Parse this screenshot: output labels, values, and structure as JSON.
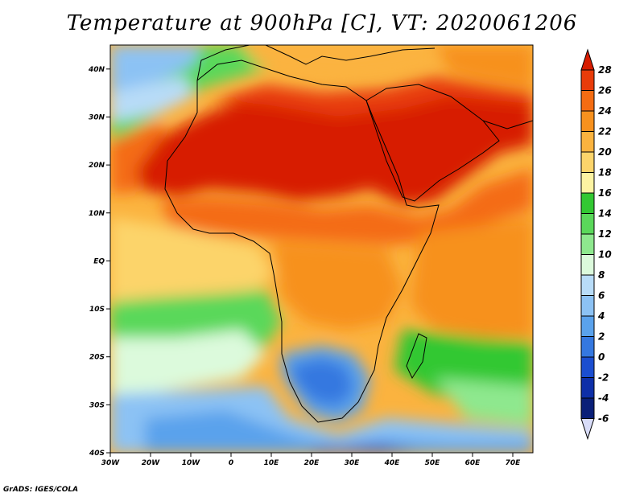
{
  "title": "Temperature at 900hPa [C], VT: 2020061206",
  "credit": "GrADS: IGES/COLA",
  "map": {
    "lon_range": [
      -30,
      75
    ],
    "lat_range": [
      -40,
      45
    ],
    "lon_ticks": [
      "30W",
      "20W",
      "10W",
      "0",
      "10E",
      "20E",
      "30E",
      "40E",
      "50E",
      "60E",
      "70E"
    ],
    "lat_ticks": [
      "40S",
      "30S",
      "20S",
      "10S",
      "EQ",
      "10N",
      "20N",
      "30N",
      "40N"
    ]
  },
  "colorbar": {
    "labels": [
      "28",
      "26",
      "24",
      "22",
      "20",
      "18",
      "16",
      "14",
      "12",
      "10",
      "8",
      "6",
      "4",
      "2",
      "0",
      "-2",
      "-4",
      "-6"
    ],
    "colors": [
      "#d71c00",
      "#e83c0a",
      "#f46c12",
      "#f7911e",
      "#fbb33f",
      "#fcd46b",
      "#fdf3a2",
      "#32c832",
      "#5ad85a",
      "#8ee88e",
      "#dcfadc",
      "#b8dcf8",
      "#8cc2f4",
      "#5aa2ec",
      "#3578e0",
      "#1b4ed0",
      "#0e2fa8",
      "#0a1f78"
    ]
  }
}
